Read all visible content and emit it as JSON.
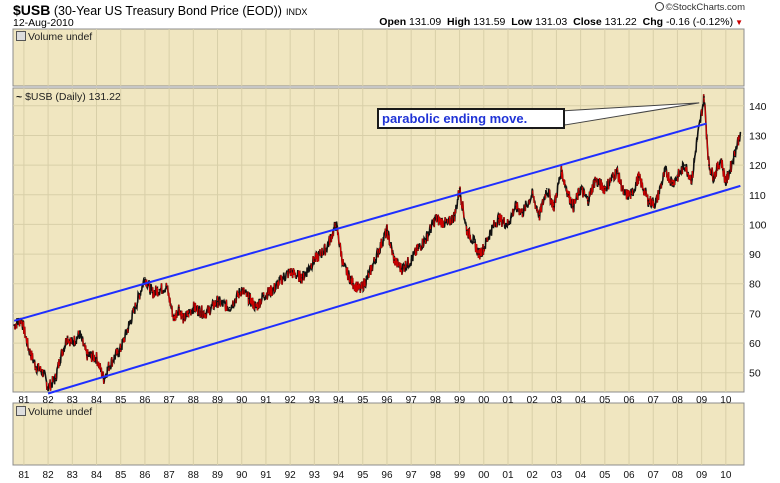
{
  "header": {
    "symbol": "$USB",
    "name": "(30-Year US Treasury Bond Price (EOD))",
    "exchange": "INDX",
    "date": "12-Aug-2010",
    "logo": "©StockCharts.com",
    "quote": {
      "open_label": "Open",
      "open": "131.09",
      "high_label": "High",
      "high": "131.59",
      "low_label": "Low",
      "low": "131.03",
      "close_label": "Close",
      "close": "131.22",
      "chg_label": "Chg",
      "chg": "-0.16 (-0.12%)"
    }
  },
  "panels": {
    "volume_top": "Volume undef",
    "price_label": "$USB (Daily) 131.22",
    "volume_bottom": "Volume undef"
  },
  "annotation": "parabolic ending move.",
  "colors": {
    "background": "#f0e6c0",
    "grid": "#d8cfa8",
    "channel": "#1f2fff",
    "price": "#111111",
    "down": "#cc0000"
  },
  "chart_data": {
    "type": "line",
    "series": [
      {
        "x": [
          1980.6,
          1980.9,
          1981.2,
          1981.5,
          1981.8,
          1982.0,
          1982.3,
          1982.5,
          1982.8,
          1983.0,
          1983.3,
          1983.6,
          1984.0,
          1984.3,
          1984.5,
          1984.8,
          1985.0,
          1985.3,
          1985.6,
          1986.0,
          1986.3,
          1986.6,
          1986.9,
          1987.2,
          1987.4,
          1987.6,
          1987.8,
          1988.0,
          1988.5,
          1989.0,
          1989.5,
          1990.0,
          1990.3,
          1990.6,
          1990.9,
          1991.3,
          1991.7,
          1992.0,
          1992.5,
          1993.0,
          1993.5,
          1993.9,
          1994.2,
          1994.6,
          1994.9,
          1995.2,
          1995.6,
          1996.0,
          1996.3,
          1996.6,
          1997.0,
          1997.3,
          1997.6,
          1998.0,
          1998.5,
          1998.8,
          1999.0,
          1999.3,
          1999.6,
          1999.8,
          2000.0,
          2000.3,
          2000.6,
          2001.0,
          2001.3,
          2001.6,
          2002.0,
          2002.3,
          2002.6,
          2002.9,
          2003.2,
          2003.5,
          2003.7,
          2004.0,
          2004.3,
          2004.6,
          2005.0,
          2005.5,
          2005.8,
          2006.1,
          2006.4,
          2006.8,
          2007.1,
          2007.5,
          2007.8,
          2008.0,
          2008.3,
          2008.6,
          2008.8,
          2008.95,
          2009.1,
          2009.3,
          2009.5,
          2009.8,
          2010.0,
          2010.3,
          2010.6
        ],
        "y": [
          66,
          68,
          58,
          52,
          50,
          45,
          48,
          55,
          62,
          60,
          63,
          56,
          55,
          48,
          52,
          56,
          58,
          65,
          72,
          82,
          77,
          78,
          79,
          68,
          72,
          68,
          70,
          72,
          70,
          74,
          72,
          78,
          75,
          72,
          76,
          78,
          82,
          84,
          82,
          88,
          92,
          100,
          86,
          80,
          78,
          82,
          90,
          98,
          88,
          85,
          88,
          92,
          95,
          102,
          100,
          103,
          112,
          98,
          94,
          90,
          92,
          98,
          102,
          100,
          106,
          104,
          110,
          103,
          112,
          106,
          118,
          110,
          106,
          112,
          108,
          115,
          112,
          118,
          110,
          110,
          116,
          108,
          107,
          118,
          114,
          116,
          120,
          115,
          128,
          135,
          143,
          120,
          116,
          122,
          114,
          122,
          131
        ]
      }
    ],
    "channel": {
      "upper": {
        "x": [
          1980.6,
          2009.2
        ],
        "y": [
          67.5,
          134
        ]
      },
      "lower": {
        "x": [
          1982.0,
          2010.6
        ],
        "y": [
          43,
          113
        ]
      }
    },
    "annotation_arrow": {
      "x": 2008.9,
      "y": 141
    },
    "price_axis": {
      "ticks": [
        50,
        60,
        70,
        80,
        90,
        100,
        110,
        120,
        130,
        140
      ],
      "ylim": [
        43.5,
        146
      ]
    },
    "x_tick_labels": [
      "81",
      "82",
      "83",
      "84",
      "85",
      "86",
      "87",
      "88",
      "89",
      "90",
      "91",
      "92",
      "93",
      "94",
      "95",
      "96",
      "97",
      "98",
      "99",
      "00",
      "01",
      "02",
      "03",
      "04",
      "05",
      "06",
      "07",
      "08",
      "09",
      "10"
    ],
    "xlim": [
      1980.55,
      2010.75
    ],
    "grid": true
  }
}
